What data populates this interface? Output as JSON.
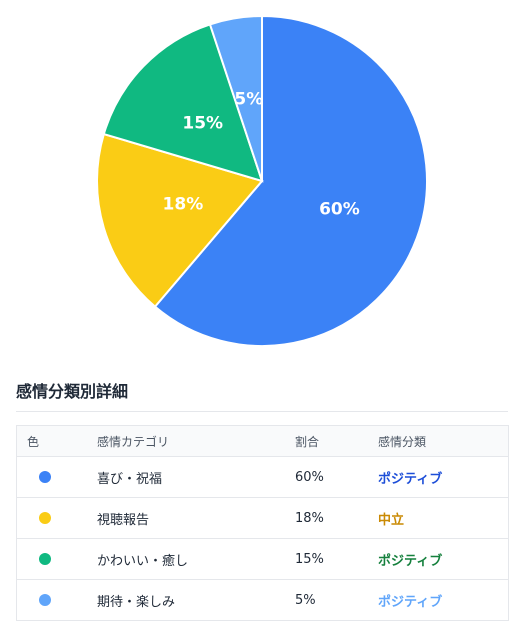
{
  "chart_data": {
    "type": "pie",
    "categories": [
      "喜び・祝福",
      "視聴報告",
      "かわいい・癒し",
      "期待・楽しみ"
    ],
    "values": [
      60,
      18,
      15,
      5
    ],
    "labels": [
      "60%",
      "18%",
      "15%",
      "5%"
    ],
    "colors": [
      "#3b82f6",
      "#facc15",
      "#10b981",
      "#60a5fa"
    ],
    "title": "",
    "legend": "none"
  },
  "detail": {
    "title": "感情分類別詳細",
    "headers": {
      "color": "色",
      "category": "感情カテゴリ",
      "ratio": "割合",
      "sentiment": "感情分類"
    },
    "rows": [
      {
        "color": "#3b82f6",
        "category": "喜び・祝福",
        "ratio": "60%",
        "sentiment": "ポジティブ",
        "sentiment_color": "#1d4ed8"
      },
      {
        "color": "#facc15",
        "category": "視聴報告",
        "ratio": "18%",
        "sentiment": "中立",
        "sentiment_color": "#ca8a04"
      },
      {
        "color": "#10b981",
        "category": "かわいい・癒し",
        "ratio": "15%",
        "sentiment": "ポジティブ",
        "sentiment_color": "#15803d"
      },
      {
        "color": "#60a5fa",
        "category": "期待・楽しみ",
        "ratio": "5%",
        "sentiment": "ポジティブ",
        "sentiment_color": "#60a5fa"
      }
    ]
  }
}
